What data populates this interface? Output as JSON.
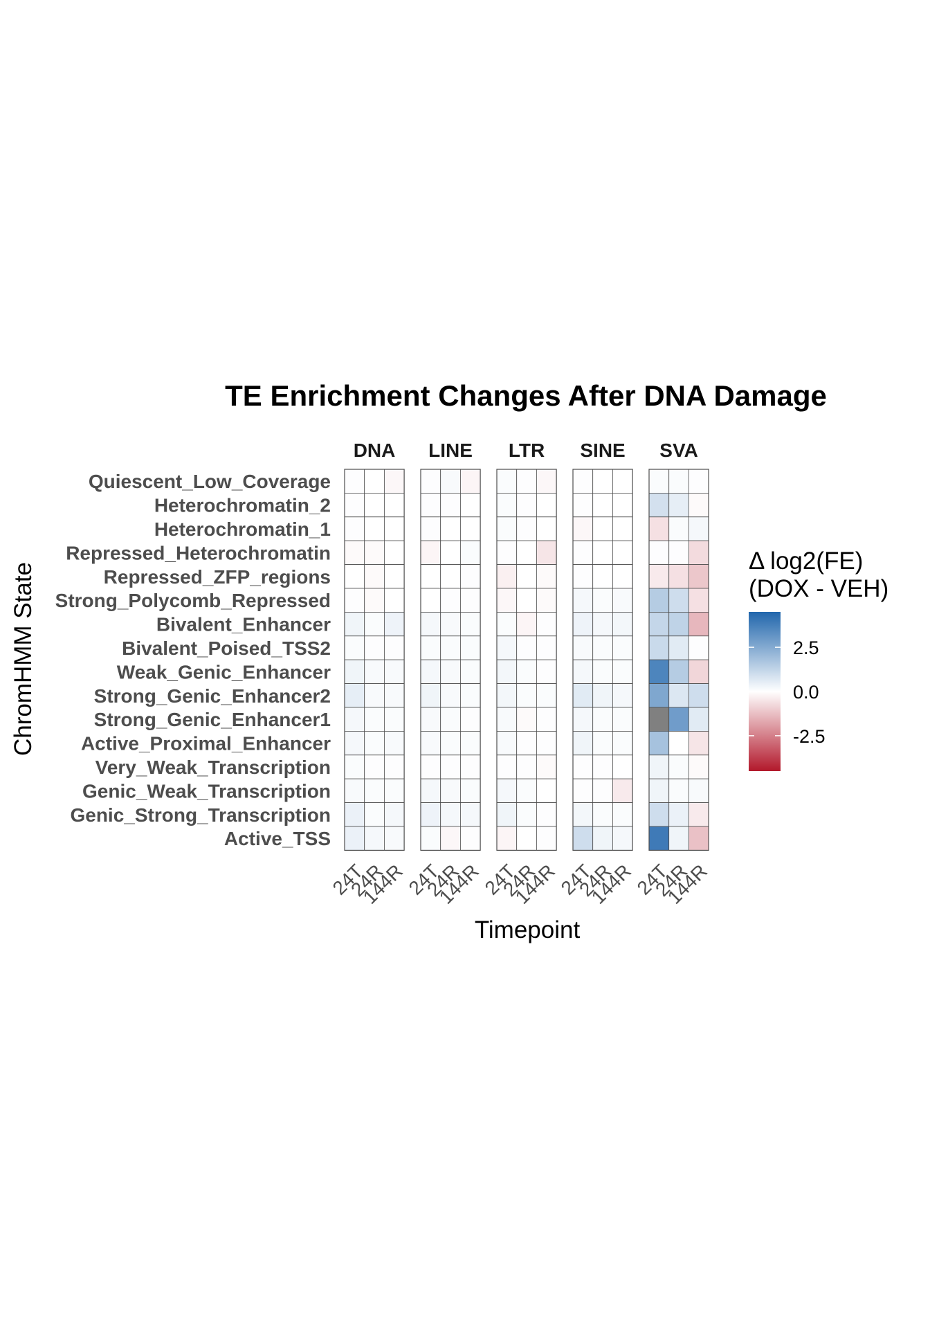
{
  "chart_data": {
    "type": "heatmap",
    "title": "TE Enrichment Changes After DNA Damage",
    "xlabel": "Timepoint",
    "ylabel": "ChromHMM State",
    "facets": [
      "DNA",
      "LINE",
      "LTR",
      "SINE",
      "SVA"
    ],
    "timepoints": [
      "24T",
      "24R",
      "144R"
    ],
    "states": [
      "Quiescent_Low_Coverage",
      "Heterochromatin_2",
      "Heterochromatin_1",
      "Repressed_Heterochromatin",
      "Repressed_ZFP_regions",
      "Strong_Polycomb_Repressed",
      "Bivalent_Enhancer",
      "Bivalent_Poised_TSS2",
      "Weak_Genic_Enhancer",
      "Strong_Genic_Enhancer2",
      "Strong_Genic_Enhancer1",
      "Active_Proximal_Enhancer",
      "Very_Weak_Transcription",
      "Genic_Weak_Transcription",
      "Genic_Strong_Transcription",
      "Active_TSS"
    ],
    "values": {
      "DNA": [
        [
          0.05,
          0.0,
          -0.15
        ],
        [
          0.05,
          0.0,
          0.0
        ],
        [
          0.05,
          0.0,
          0.0
        ],
        [
          -0.1,
          -0.1,
          0.0
        ],
        [
          0.0,
          -0.1,
          0.0
        ],
        [
          0.05,
          -0.1,
          0.0
        ],
        [
          0.3,
          0.1,
          0.35
        ],
        [
          0.1,
          0.05,
          0.05
        ],
        [
          0.3,
          0.15,
          0.15
        ],
        [
          0.5,
          0.15,
          0.15
        ],
        [
          0.2,
          0.1,
          0.1
        ],
        [
          0.2,
          0.1,
          0.15
        ],
        [
          0.1,
          0.05,
          0.05
        ],
        [
          0.15,
          0.1,
          0.1
        ],
        [
          0.4,
          0.1,
          0.2
        ],
        [
          0.4,
          0.2,
          0.15
        ]
      ],
      "LINE": [
        [
          0.05,
          0.15,
          -0.2
        ],
        [
          0.05,
          0.05,
          0.0
        ],
        [
          0.05,
          0.0,
          0.0
        ],
        [
          -0.2,
          0.0,
          0.1
        ],
        [
          0.0,
          0.0,
          0.05
        ],
        [
          0.0,
          0.05,
          0.05
        ],
        [
          0.2,
          0.15,
          0.1
        ],
        [
          0.1,
          0.1,
          0.1
        ],
        [
          0.2,
          0.15,
          0.1
        ],
        [
          0.3,
          0.15,
          0.1
        ],
        [
          0.15,
          0.1,
          0.05
        ],
        [
          0.15,
          0.1,
          0.1
        ],
        [
          0.05,
          0.05,
          0.05
        ],
        [
          0.2,
          0.15,
          0.1
        ],
        [
          0.35,
          0.2,
          0.2
        ],
        [
          0.1,
          -0.15,
          0.05
        ]
      ],
      "LTR": [
        [
          0.1,
          0.05,
          -0.15
        ],
        [
          0.1,
          0.05,
          0.0
        ],
        [
          0.1,
          0.05,
          0.0
        ],
        [
          0.05,
          0.0,
          -0.5
        ],
        [
          -0.3,
          0.0,
          -0.1
        ],
        [
          -0.15,
          0.0,
          -0.1
        ],
        [
          0.1,
          -0.2,
          0.05
        ],
        [
          0.2,
          0.05,
          0.05
        ],
        [
          0.25,
          0.1,
          0.05
        ],
        [
          0.25,
          0.1,
          0.1
        ],
        [
          0.15,
          -0.1,
          0.05
        ],
        [
          0.15,
          0.05,
          0.05
        ],
        [
          0.05,
          0.05,
          -0.1
        ],
        [
          0.2,
          0.1,
          0.0
        ],
        [
          0.3,
          0.1,
          0.05
        ],
        [
          -0.2,
          0.0,
          0.05
        ]
      ],
      "SINE": [
        [
          0.05,
          0.0,
          0.0
        ],
        [
          0.05,
          0.0,
          0.0
        ],
        [
          -0.15,
          0.0,
          0.0
        ],
        [
          0.05,
          0.0,
          0.0
        ],
        [
          0.05,
          0.0,
          0.0
        ],
        [
          0.2,
          0.1,
          0.15
        ],
        [
          0.35,
          0.2,
          0.25
        ],
        [
          0.15,
          0.1,
          0.1
        ],
        [
          0.2,
          0.1,
          0.1
        ],
        [
          0.6,
          0.3,
          0.2
        ],
        [
          0.2,
          0.1,
          0.1
        ],
        [
          0.3,
          0.1,
          0.1
        ],
        [
          0.05,
          0.05,
          0.0
        ],
        [
          0.05,
          0.05,
          -0.4
        ],
        [
          0.25,
          0.1,
          0.1
        ],
        [
          1.0,
          0.3,
          0.2
        ]
      ],
      "SVA": [
        [
          0.1,
          0.1,
          0.05
        ],
        [
          0.9,
          0.5,
          -0.1
        ],
        [
          -0.6,
          0.1,
          0.2
        ],
        [
          0.05,
          0.05,
          -0.7
        ],
        [
          -0.4,
          -0.6,
          -1.1
        ],
        [
          1.5,
          1.0,
          -0.6
        ],
        [
          1.2,
          1.3,
          -1.4
        ],
        [
          1.1,
          0.6,
          0.05
        ],
        [
          3.6,
          1.5,
          -0.8
        ],
        [
          2.6,
          0.7,
          1.0
        ],
        [
          null,
          2.9,
          0.6
        ],
        [
          1.8,
          0.0,
          -0.5
        ],
        [
          0.3,
          0.1,
          -0.1
        ],
        [
          0.3,
          0.1,
          0.15
        ],
        [
          1.0,
          0.4,
          -0.4
        ],
        [
          3.9,
          0.3,
          -1.2
        ]
      ]
    },
    "legend": {
      "title_line1": "Δ log2(FE)",
      "title_line2": "(DOX - VEH)",
      "position": "right",
      "ticks": [
        {
          "value": 2.5,
          "label": "2.5"
        },
        {
          "value": 0.0,
          "label": "0.0"
        },
        {
          "value": -2.5,
          "label": "-2.5"
        }
      ],
      "range": [
        -4.5,
        4.5
      ]
    },
    "colors": {
      "low": "#b2182b",
      "mid": "#ffffff",
      "high": "#2166ac",
      "na": "#808080",
      "cell_border": "#4d4d4d"
    }
  }
}
